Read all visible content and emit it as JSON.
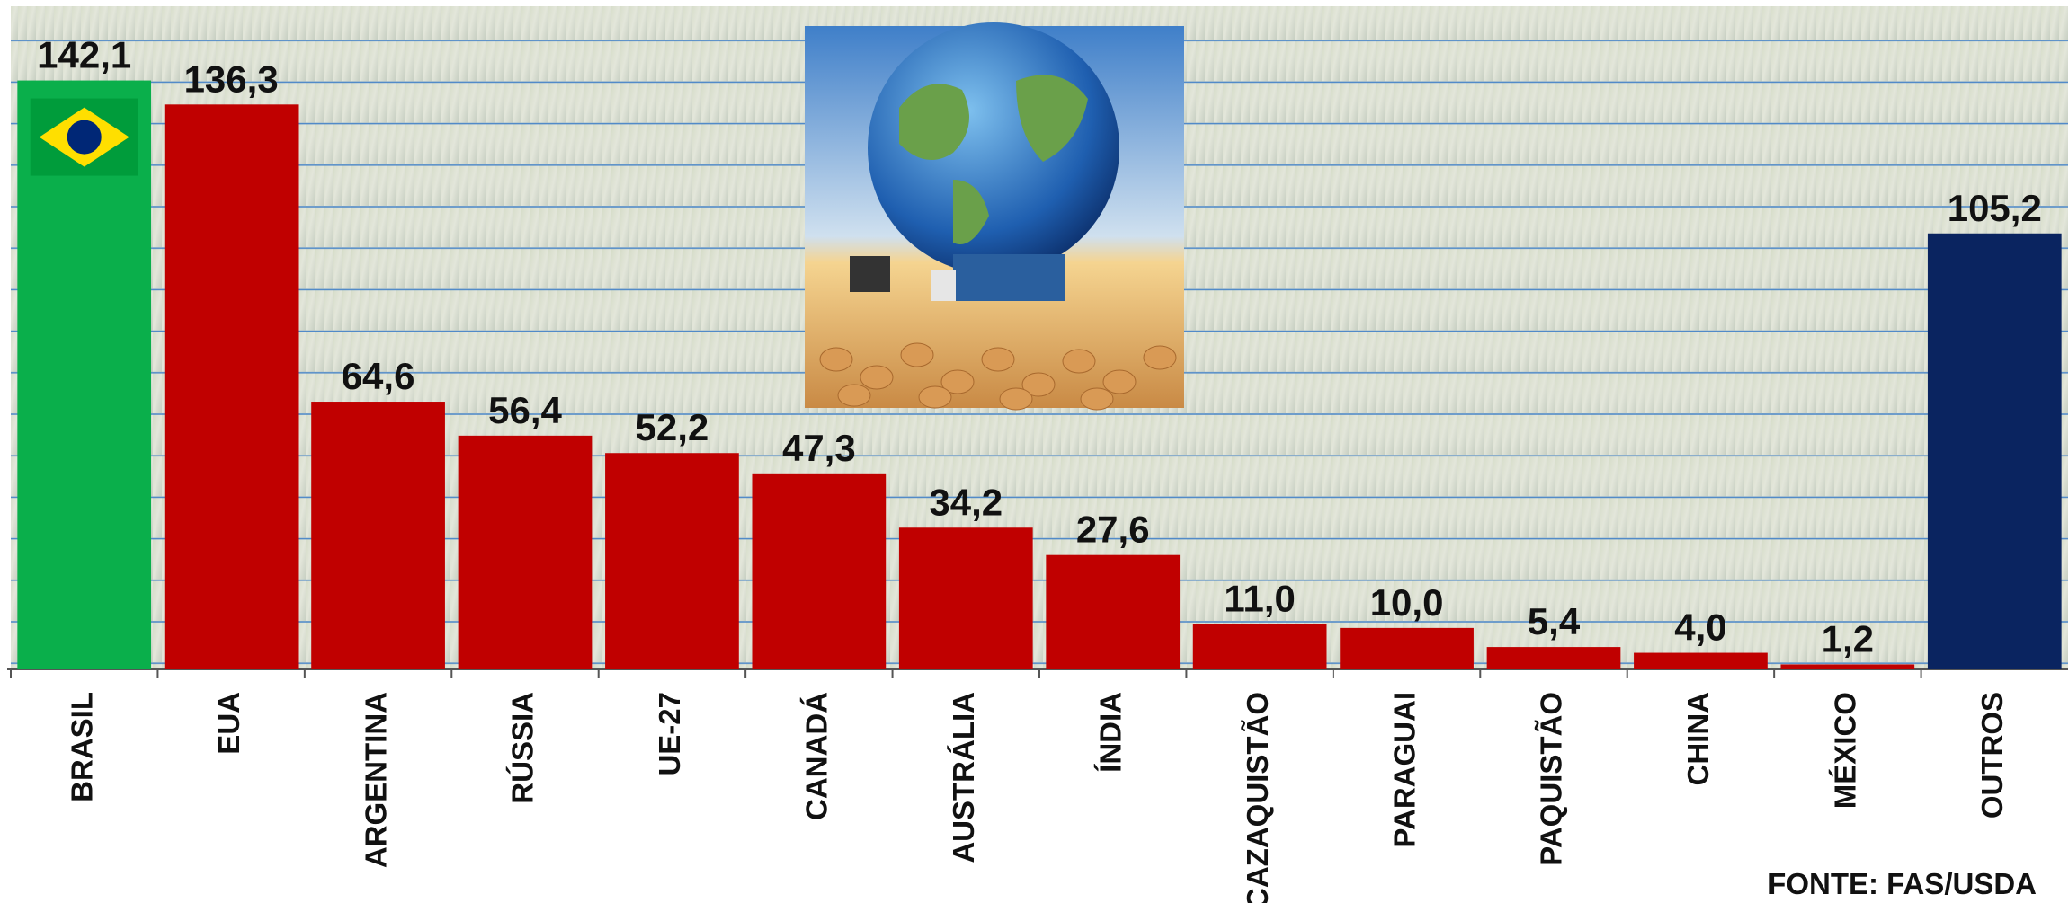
{
  "chart_data": {
    "type": "bar",
    "categories": [
      "BRASIL",
      "EUA",
      "ARGENTINA",
      "RÚSSIA",
      "UE-27",
      "CANADÁ",
      "AUSTRÁLIA",
      "ÍNDIA",
      "CAZAQUISTÃO",
      "PARAGUAI",
      "PAQUISTÃO",
      "CHINA",
      "MÉXICO",
      "OUTROS"
    ],
    "values": [
      142.1,
      136.3,
      64.6,
      56.4,
      52.2,
      47.3,
      34.2,
      27.6,
      11.0,
      10.0,
      5.4,
      4.0,
      1.2,
      105.2
    ],
    "value_labels": [
      "142,1",
      "136,3",
      "64,6",
      "56,4",
      "52,2",
      "47,3",
      "34,2",
      "27,6",
      "11,0",
      "10,0",
      "5,4",
      "4,0",
      "1,2",
      "105,2"
    ],
    "colors": [
      "#0aaf4b",
      "#c00000",
      "#c00000",
      "#c00000",
      "#c00000",
      "#c00000",
      "#c00000",
      "#c00000",
      "#c00000",
      "#c00000",
      "#c00000",
      "#c00000",
      "#c00000",
      "#0a2460"
    ],
    "ylim": [
      0,
      160
    ],
    "source": "FONTE: FAS/USDA"
  }
}
